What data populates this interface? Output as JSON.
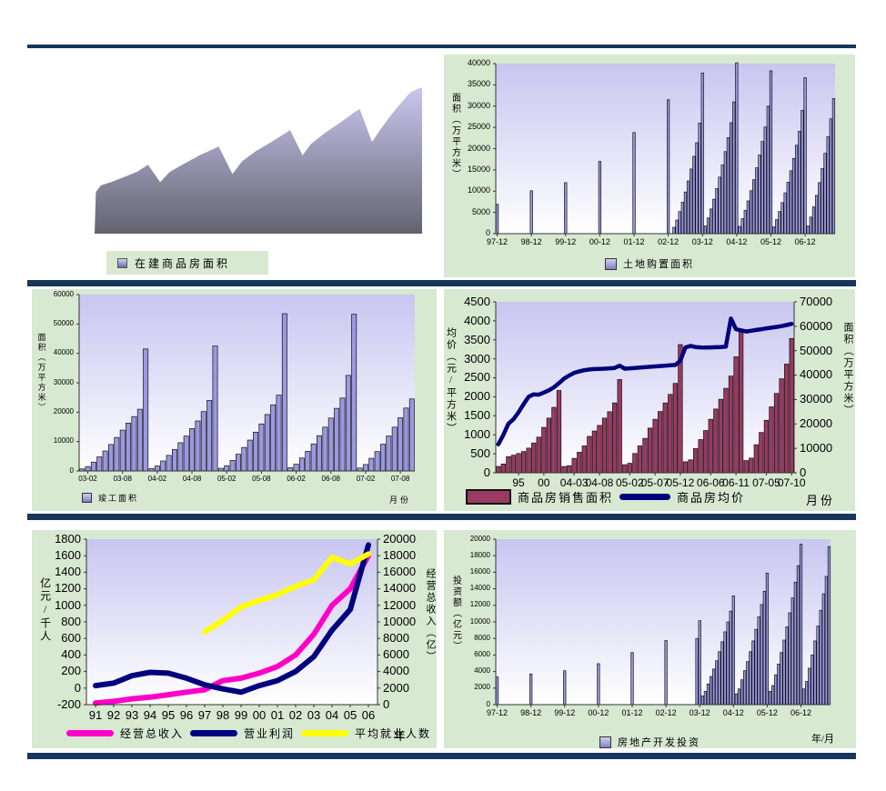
{
  "page": {
    "background": "#ffffff",
    "separator_color": "#16365c",
    "panel_background": "#d7e9d1",
    "plot_gradient_top": "#c8c6f0",
    "plot_gradient_bottom": "#ffffff"
  },
  "chart_data": {
    "under_construction": {
      "type": "area",
      "legend": "在建商品房面积",
      "fill_top": "#c9c7ef",
      "fill_bottom": "#63636f",
      "points": [
        [
          0,
          1
        ],
        [
          0.004,
          0.72
        ],
        [
          0.02,
          0.675
        ],
        [
          0.05,
          0.655
        ],
        [
          0.09,
          0.62
        ],
        [
          0.13,
          0.585
        ],
        [
          0.158,
          0.545
        ],
        [
          0.163,
          0.537
        ],
        [
          0.2,
          0.655
        ],
        [
          0.23,
          0.585
        ],
        [
          0.27,
          0.535
        ],
        [
          0.32,
          0.475
        ],
        [
          0.37,
          0.425
        ],
        [
          0.379,
          0.415
        ],
        [
          0.421,
          0.6
        ],
        [
          0.45,
          0.515
        ],
        [
          0.49,
          0.45
        ],
        [
          0.54,
          0.385
        ],
        [
          0.59,
          0.315
        ],
        [
          0.597,
          0.305
        ],
        [
          0.635,
          0.475
        ],
        [
          0.66,
          0.4
        ],
        [
          0.7,
          0.33
        ],
        [
          0.75,
          0.255
        ],
        [
          0.8,
          0.175
        ],
        [
          0.81,
          0.165
        ],
        [
          0.847,
          0.385
        ],
        [
          0.875,
          0.295
        ],
        [
          0.905,
          0.205
        ],
        [
          0.935,
          0.125
        ],
        [
          0.965,
          0.05
        ],
        [
          0.997,
          0.02
        ],
        [
          1,
          0.025
        ],
        [
          1,
          1
        ]
      ]
    },
    "land_purchase": {
      "type": "bar",
      "legend": "土地购置面积",
      "y_title": "面积（万平方米）",
      "bar_color": "#9a98e2",
      "bar_border": "#111111",
      "y_axis": {
        "min": 0,
        "max": 40000,
        "step": 5000
      },
      "n_slots": 119,
      "x_ticks": [
        [
          0,
          "97-12"
        ],
        [
          12,
          "98-12"
        ],
        [
          24,
          "99-12"
        ],
        [
          36,
          "00-12"
        ],
        [
          48,
          "01-12"
        ],
        [
          60,
          "02-12"
        ],
        [
          72,
          "03-12"
        ],
        [
          84,
          "04-12"
        ],
        [
          96,
          "05-12"
        ],
        [
          108,
          "06-12"
        ]
      ],
      "bars": [
        [
          0,
          6900
        ],
        [
          12,
          10100
        ],
        [
          24,
          12000
        ],
        [
          36,
          17000
        ],
        [
          48,
          23800
        ],
        [
          60,
          31500
        ],
        [
          62,
          1500
        ],
        [
          63,
          3200
        ],
        [
          64,
          5200
        ],
        [
          65,
          7400
        ],
        [
          66,
          9800
        ],
        [
          67,
          12400
        ],
        [
          68,
          15200
        ],
        [
          69,
          18200
        ],
        [
          70,
          21400
        ],
        [
          71,
          26000
        ],
        [
          72,
          37800
        ],
        [
          73,
          1800
        ],
        [
          74,
          3700
        ],
        [
          75,
          5800
        ],
        [
          76,
          8100
        ],
        [
          77,
          10600
        ],
        [
          78,
          13300
        ],
        [
          79,
          16200
        ],
        [
          80,
          19300
        ],
        [
          81,
          22600
        ],
        [
          82,
          26100
        ],
        [
          83,
          31000
        ],
        [
          84,
          40200
        ],
        [
          85,
          1700
        ],
        [
          86,
          3500
        ],
        [
          87,
          5500
        ],
        [
          88,
          7700
        ],
        [
          89,
          10100
        ],
        [
          90,
          12700
        ],
        [
          91,
          15500
        ],
        [
          92,
          18500
        ],
        [
          93,
          21700
        ],
        [
          94,
          25100
        ],
        [
          95,
          30000
        ],
        [
          96,
          38300
        ],
        [
          97,
          1600
        ],
        [
          98,
          3300
        ],
        [
          99,
          5200
        ],
        [
          100,
          7300
        ],
        [
          101,
          9600
        ],
        [
          102,
          12100
        ],
        [
          103,
          14800
        ],
        [
          104,
          17700
        ],
        [
          105,
          20800
        ],
        [
          106,
          24100
        ],
        [
          107,
          29000
        ],
        [
          108,
          36700
        ],
        [
          109,
          1800
        ],
        [
          110,
          3900
        ],
        [
          111,
          6300
        ],
        [
          112,
          9000
        ],
        [
          113,
          12000
        ],
        [
          114,
          15300
        ],
        [
          115,
          18900
        ],
        [
          116,
          22800
        ],
        [
          117,
          27000
        ],
        [
          118,
          31800
        ]
      ]
    },
    "completed_area": {
      "type": "bar",
      "legend": "竣工面积",
      "y_title": "面积（万平方米）",
      "x_title": "月份",
      "bar_color": "#9a98e2",
      "bar_border": "#111111",
      "y_axis": {
        "min": 0,
        "max": 60000,
        "step": 10000
      },
      "n_slots": 58,
      "x_ticks": [
        [
          1,
          "03-02"
        ],
        [
          7,
          "03-08"
        ],
        [
          13,
          "04-02"
        ],
        [
          19,
          "04-08"
        ],
        [
          25,
          "05-02"
        ],
        [
          31,
          "05-08"
        ],
        [
          37,
          "06-02"
        ],
        [
          43,
          "06-08"
        ],
        [
          49,
          "07-02"
        ],
        [
          55,
          "07-08"
        ]
      ],
      "bars": [
        [
          0,
          700
        ],
        [
          1,
          1500
        ],
        [
          2,
          3000
        ],
        [
          3,
          4800
        ],
        [
          4,
          6800
        ],
        [
          5,
          9000
        ],
        [
          6,
          11400
        ],
        [
          7,
          13900
        ],
        [
          8,
          16300
        ],
        [
          9,
          18500
        ],
        [
          10,
          21000
        ],
        [
          11,
          41500
        ],
        [
          12,
          800
        ],
        [
          13,
          1700
        ],
        [
          14,
          3400
        ],
        [
          15,
          5300
        ],
        [
          16,
          7300
        ],
        [
          17,
          9600
        ],
        [
          18,
          11900
        ],
        [
          19,
          14400
        ],
        [
          20,
          17000
        ],
        [
          21,
          20200
        ],
        [
          22,
          24000
        ],
        [
          23,
          42500
        ],
        [
          24,
          900
        ],
        [
          25,
          1800
        ],
        [
          26,
          3600
        ],
        [
          27,
          5700
        ],
        [
          28,
          8000
        ],
        [
          29,
          10500
        ],
        [
          30,
          13200
        ],
        [
          31,
          16000
        ],
        [
          32,
          19200
        ],
        [
          33,
          22500
        ],
        [
          34,
          25800
        ],
        [
          35,
          53500
        ],
        [
          36,
          1100
        ],
        [
          37,
          2300
        ],
        [
          38,
          4400
        ],
        [
          39,
          6700
        ],
        [
          40,
          9200
        ],
        [
          41,
          12000
        ],
        [
          42,
          14900
        ],
        [
          43,
          18000
        ],
        [
          44,
          21300
        ],
        [
          45,
          24800
        ],
        [
          46,
          32500
        ],
        [
          47,
          53300
        ],
        [
          48,
          1000
        ],
        [
          49,
          2200
        ],
        [
          50,
          4300
        ],
        [
          51,
          6600
        ],
        [
          52,
          9100
        ],
        [
          53,
          11900
        ],
        [
          54,
          14900
        ],
        [
          55,
          18100
        ],
        [
          56,
          21400
        ],
        [
          57,
          24500
        ]
      ]
    },
    "sales_price": {
      "type": "bar+line",
      "bar_legend": "商品房销售面积",
      "line_legend": "商品房均价",
      "x_title": "月份",
      "bar_color": "#9a3961",
      "bar_border": "#111111",
      "line_color": "#00007e",
      "left_axis": {
        "min": 0,
        "max": 4500,
        "step": 500,
        "title": "均价（元/平方米）"
      },
      "right_axis": {
        "min": 0,
        "max": 70000,
        "step": 10000,
        "title": "面积（万平方米）"
      },
      "bars_axis": "right",
      "n_slots": 59,
      "x_ticks": [
        [
          4,
          "95"
        ],
        [
          9,
          "00"
        ],
        [
          15,
          "04-03"
        ],
        [
          20,
          "04-08"
        ],
        [
          26,
          "05-02"
        ],
        [
          31,
          "05-07"
        ],
        [
          36,
          "05-12"
        ],
        [
          42,
          "06-06"
        ],
        [
          47,
          "06-11"
        ],
        [
          53,
          "07-05"
        ],
        [
          58,
          "07-10"
        ]
      ],
      "bars": [
        2600,
        3600,
        6600,
        7200,
        7900,
        8700,
        10100,
        12200,
        14600,
        18600,
        22400,
        26800,
        33700,
        2600,
        2900,
        5900,
        8400,
        11000,
        14900,
        17100,
        19400,
        22400,
        25000,
        28600,
        38200,
        3300,
        3900,
        7900,
        11000,
        14100,
        18300,
        21900,
        25100,
        28600,
        32100,
        36600,
        52500,
        4500,
        5300,
        9900,
        13600,
        17300,
        21900,
        26100,
        30100,
        34600,
        39600,
        47500,
        57500,
        5000,
        6000,
        11500,
        16500,
        21500,
        27000,
        32500,
        38500,
        44500,
        55000
      ],
      "line": {
        "axis": "left",
        "width": 4.5,
        "values": [
          750,
          995,
          1290,
          1410,
          1590,
          1805,
          2000,
          2065,
          2055,
          2110,
          2170,
          2250,
          2360,
          2480,
          2560,
          2630,
          2670,
          2700,
          2720,
          2730,
          2735,
          2740,
          2750,
          2760,
          2820,
          2740,
          2750,
          2760,
          2770,
          2780,
          2790,
          2800,
          2810,
          2820,
          2830,
          2840,
          2950,
          3300,
          3340,
          3310,
          3300,
          3295,
          3300,
          3305,
          3310,
          3320,
          4060,
          3780,
          3750,
          3720,
          3740,
          3760,
          3780,
          3800,
          3820,
          3840,
          3860,
          3890,
          3920
        ]
      }
    },
    "revenue_profit_employment": {
      "type": "line",
      "x_title": "年",
      "left_axis": {
        "min": -200,
        "max": 1800,
        "step": 200,
        "title": "亿元/千人"
      },
      "right_axis": {
        "min": 0,
        "max": 20000,
        "step": 2000,
        "title": "经营总收入（亿）"
      },
      "categories": [
        "91",
        "92",
        "93",
        "94",
        "95",
        "96",
        "97",
        "98",
        "99",
        "00",
        "01",
        "02",
        "03",
        "04",
        "05",
        "06"
      ],
      "series": [
        {
          "name": "经营总收入",
          "color": "#ff00c8",
          "axis": "right",
          "width": 6,
          "values": [
            200,
            400,
            700,
            900,
            1200,
            1500,
            1800,
            2900,
            3200,
            3800,
            4600,
            6000,
            8500,
            12000,
            14000,
            18000
          ]
        },
        {
          "name": "营业利润",
          "color": "#00007e",
          "axis": "left",
          "width": 6,
          "values": [
            30,
            60,
            150,
            190,
            180,
            120,
            40,
            -10,
            -50,
            30,
            90,
            200,
            380,
            700,
            950,
            1730
          ]
        },
        {
          "name": "平均就业人数",
          "color": "#ffff00",
          "axis": "left",
          "width": 6,
          "values": [
            null,
            null,
            null,
            null,
            null,
            null,
            680,
            820,
            980,
            1060,
            1130,
            1230,
            1310,
            1580,
            1500,
            1620
          ]
        }
      ]
    },
    "investment": {
      "type": "bar",
      "legend": "房地产开发投资",
      "y_title": "投资额（亿元）",
      "x_title": "年/月",
      "bar_color": "#9a98e2",
      "bar_border": "#111111",
      "y_axis": {
        "min": 0,
        "max": 20000,
        "step": 2000
      },
      "n_slots": 119,
      "x_ticks": [
        [
          0,
          "97-12"
        ],
        [
          12,
          "98-12"
        ],
        [
          24,
          "99-12"
        ],
        [
          36,
          "00-12"
        ],
        [
          48,
          "01-12"
        ],
        [
          60,
          "02-12"
        ],
        [
          72,
          "03-12"
        ],
        [
          84,
          "04-12"
        ],
        [
          96,
          "05-12"
        ],
        [
          108,
          "06-12"
        ]
      ],
      "bars": [
        [
          0,
          3350
        ],
        [
          12,
          3700
        ],
        [
          24,
          4100
        ],
        [
          36,
          4950
        ],
        [
          48,
          6300
        ],
        [
          60,
          7750
        ],
        [
          71,
          8000
        ],
        [
          72,
          10150
        ],
        [
          73,
          1050
        ],
        [
          74,
          1600
        ],
        [
          75,
          2500
        ],
        [
          76,
          3400
        ],
        [
          77,
          4300
        ],
        [
          78,
          5300
        ],
        [
          79,
          6400
        ],
        [
          80,
          7600
        ],
        [
          81,
          8800
        ],
        [
          82,
          10000
        ],
        [
          83,
          11300
        ],
        [
          84,
          13150
        ],
        [
          85,
          1300
        ],
        [
          86,
          1900
        ],
        [
          87,
          3000
        ],
        [
          88,
          4100
        ],
        [
          89,
          5200
        ],
        [
          90,
          6400
        ],
        [
          91,
          7700
        ],
        [
          92,
          9100
        ],
        [
          93,
          10600
        ],
        [
          94,
          12100
        ],
        [
          95,
          13700
        ],
        [
          96,
          15900
        ],
        [
          97,
          1600
        ],
        [
          98,
          2300
        ],
        [
          99,
          3600
        ],
        [
          100,
          4900
        ],
        [
          101,
          6300
        ],
        [
          102,
          7800
        ],
        [
          103,
          9400
        ],
        [
          104,
          11100
        ],
        [
          105,
          12900
        ],
        [
          106,
          14800
        ],
        [
          107,
          16800
        ],
        [
          108,
          19400
        ],
        [
          109,
          1900
        ],
        [
          110,
          2800
        ],
        [
          111,
          4400
        ],
        [
          112,
          6000
        ],
        [
          113,
          7700
        ],
        [
          114,
          9500
        ],
        [
          115,
          11400
        ],
        [
          116,
          13400
        ],
        [
          117,
          15500
        ],
        [
          118,
          19100
        ]
      ]
    }
  }
}
